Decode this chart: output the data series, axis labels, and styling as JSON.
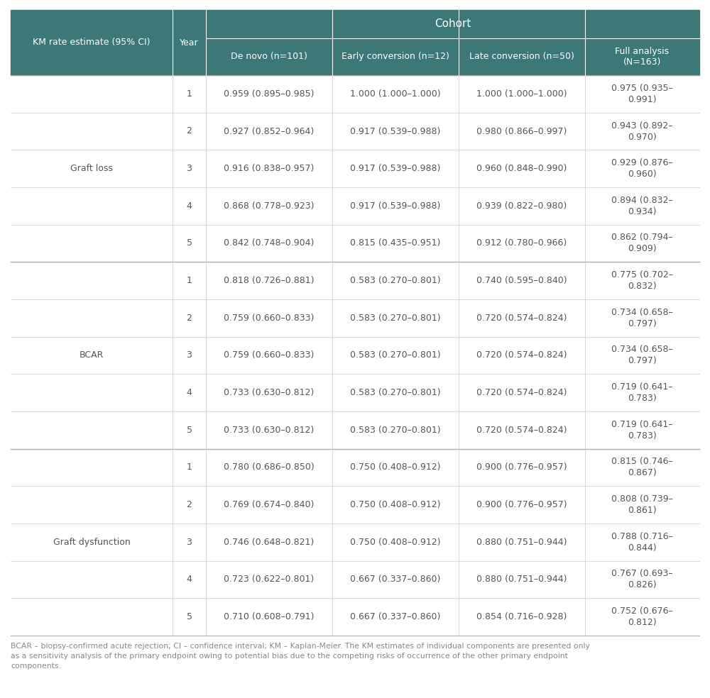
{
  "header_bg": "#3d7878",
  "header_text_color": "#ffffff",
  "body_bg": "#ffffff",
  "body_text_color": "#555555",
  "divider_color": "#cccccc",
  "section_divider_color": "#aaaaaa",
  "col0_header": "KM rate estimate (95% CI)",
  "col1_header": "Year",
  "cohort_header": "Cohort",
  "col2_header": "De novo (n=101)",
  "col3_header": "Early conversion (n=12)",
  "col4_header": "Late conversion (n=50)",
  "col5_header": "Full analysis\n(N=163)",
  "sections": [
    {
      "label": "Graft loss",
      "rows": [
        {
          "year": "1",
          "denovo": "0.959 (0.895–0.985)",
          "early": "1.000 (1.000–1.000)",
          "late": "1.000 (1.000–1.000)",
          "full": "0.975 (0.935–\n0.991)"
        },
        {
          "year": "2",
          "denovo": "0.927 (0.852–0.964)",
          "early": "0.917 (0.539–0.988)",
          "late": "0.980 (0.866–0.997)",
          "full": "0.943 (0.892–\n0.970)"
        },
        {
          "year": "3",
          "denovo": "0.916 (0.838–0.957)",
          "early": "0.917 (0.539–0.988)",
          "late": "0.960 (0.848–0.990)",
          "full": "0.929 (0.876–\n0.960)"
        },
        {
          "year": "4",
          "denovo": "0.868 (0.778–0.923)",
          "early": "0.917 (0.539–0.988)",
          "late": "0.939 (0.822–0.980)",
          "full": "0.894 (0.832–\n0.934)"
        },
        {
          "year": "5",
          "denovo": "0.842 (0.748–0.904)",
          "early": "0.815 (0.435–0.951)",
          "late": "0.912 (0.780–0.966)",
          "full": "0.862 (0.794–\n0.909)"
        }
      ]
    },
    {
      "label": "BCAR",
      "rows": [
        {
          "year": "1",
          "denovo": "0.818 (0.726–0.881)",
          "early": "0.583 (0.270–0.801)",
          "late": "0.740 (0.595–0.840)",
          "full": "0.775 (0.702–\n0.832)"
        },
        {
          "year": "2",
          "denovo": "0.759 (0.660–0.833)",
          "early": "0.583 (0.270–0.801)",
          "late": "0.720 (0.574–0.824)",
          "full": "0.734 (0.658–\n0.797)"
        },
        {
          "year": "3",
          "denovo": "0.759 (0.660–0.833)",
          "early": "0.583 (0.270–0.801)",
          "late": "0.720 (0.574–0.824)",
          "full": "0.734 (0.658–\n0.797)"
        },
        {
          "year": "4",
          "denovo": "0.733 (0.630–0.812)",
          "early": "0.583 (0.270–0.801)",
          "late": "0.720 (0.574–0.824)",
          "full": "0.719 (0.641–\n0.783)"
        },
        {
          "year": "5",
          "denovo": "0.733 (0.630–0.812)",
          "early": "0.583 (0.270–0.801)",
          "late": "0.720 (0.574–0.824)",
          "full": "0.719 (0.641–\n0.783)"
        }
      ]
    },
    {
      "label": "Graft dysfunction",
      "rows": [
        {
          "year": "1",
          "denovo": "0.780 (0.686–0.850)",
          "early": "0.750 (0.408–0.912)",
          "late": "0.900 (0.776–0.957)",
          "full": "0.815 (0.746–\n0.867)"
        },
        {
          "year": "2",
          "denovo": "0.769 (0.674–0.840)",
          "early": "0.750 (0.408–0.912)",
          "late": "0.900 (0.776–0.957)",
          "full": "0.808 (0.739–\n0.861)"
        },
        {
          "year": "3",
          "denovo": "0.746 (0.648–0.821)",
          "early": "0.750 (0.408–0.912)",
          "late": "0.880 (0.751–0.944)",
          "full": "0.788 (0.716–\n0.844)"
        },
        {
          "year": "4",
          "denovo": "0.723 (0.622–0.801)",
          "early": "0.667 (0.337–0.860)",
          "late": "0.880 (0.751–0.944)",
          "full": "0.767 (0.693–\n0.826)"
        },
        {
          "year": "5",
          "denovo": "0.710 (0.608–0.791)",
          "early": "0.667 (0.337–0.860)",
          "late": "0.854 (0.716–0.928)",
          "full": "0.752 (0.676–\n0.812)"
        }
      ]
    }
  ],
  "footnote": "BCAR – biopsy-confirmed acute rejection; CI – confidence interval; KM – Kaplan-Meier. The KM estimates of individual components are presented only\nas a sensitivity analysis of the primary endpoint owing to potential bias due to the competing risks of occurrence of the other primary endpoint\ncomponents."
}
